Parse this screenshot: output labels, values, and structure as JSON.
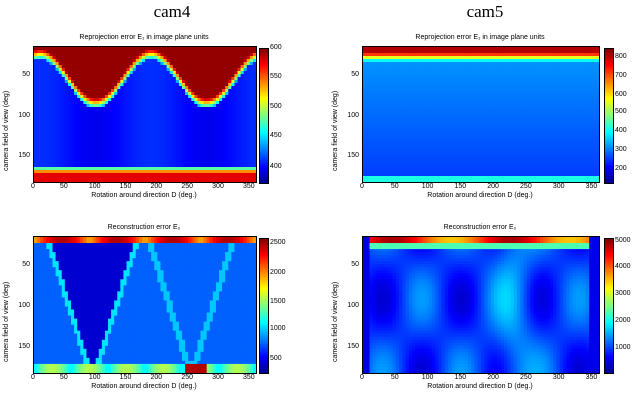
{
  "column_titles": [
    "cam4",
    "cam5"
  ],
  "chart_data": [
    {
      "type": "heatmap",
      "column": "cam4",
      "title": "Reprojection error E₁ in image plane units",
      "xlabel": "Rotation around direction D (deg.)",
      "ylabel": "camera field of view (deg)",
      "x_ticks": [
        "0",
        "50",
        "100",
        "150",
        "200",
        "250",
        "300",
        "350"
      ],
      "y_ticks": [
        "50",
        "100",
        "150"
      ],
      "xlim": [
        0,
        360
      ],
      "ylim": [
        180,
        15
      ],
      "colorbar": {
        "ticks": [
          "600",
          "550",
          "500",
          "450",
          "400"
        ],
        "range": [
          360,
          600
        ]
      },
      "colormap": "jet"
    },
    {
      "type": "heatmap",
      "column": "cam5",
      "title": "Reprojection error E₁ in image plane units",
      "xlabel": "Rotation around direction D (deg.)",
      "ylabel": "camera field of view (deg)",
      "x_ticks": [
        "0",
        "50",
        "100",
        "150",
        "200",
        "250",
        "300",
        "350"
      ],
      "y_ticks": [
        "50",
        "100",
        "150"
      ],
      "xlim": [
        0,
        360
      ],
      "ylim": [
        180,
        15
      ],
      "colorbar": {
        "ticks": [
          "800",
          "700",
          "600",
          "500",
          "400",
          "300",
          "200"
        ],
        "range": [
          150,
          880
        ]
      },
      "colormap": "jet"
    },
    {
      "type": "heatmap",
      "column": "cam4",
      "title": "Reconstruction error E₂",
      "xlabel": "Rotation around direction D (deg.)",
      "ylabel": "camera field of view (deg)",
      "x_ticks": [
        "0",
        "50",
        "100",
        "150",
        "200",
        "250",
        "300",
        "350"
      ],
      "y_ticks": [
        "50",
        "100",
        "150"
      ],
      "xlim": [
        0,
        360
      ],
      "ylim": [
        180,
        15
      ],
      "colorbar": {
        "ticks": [
          "2500",
          "2000",
          "1500",
          "1000",
          "500"
        ],
        "range": [
          300,
          2700
        ]
      },
      "colormap": "jet"
    },
    {
      "type": "heatmap",
      "column": "cam5",
      "title": "Reconstruction error E₂",
      "xlabel": "Rotation around direction D (deg.)",
      "ylabel": "camera field of view (deg)",
      "x_ticks": [
        "0",
        "50",
        "100",
        "150",
        "200",
        "250",
        "300",
        "350"
      ],
      "y_ticks": [
        "50",
        "100",
        "150"
      ],
      "xlim": [
        0,
        360
      ],
      "ylim": [
        180,
        15
      ],
      "colorbar": {
        "ticks": [
          "5000",
          "4000",
          "3000",
          "2000",
          "1000"
        ],
        "range": [
          200,
          5100
        ]
      },
      "colormap": "jet"
    }
  ]
}
